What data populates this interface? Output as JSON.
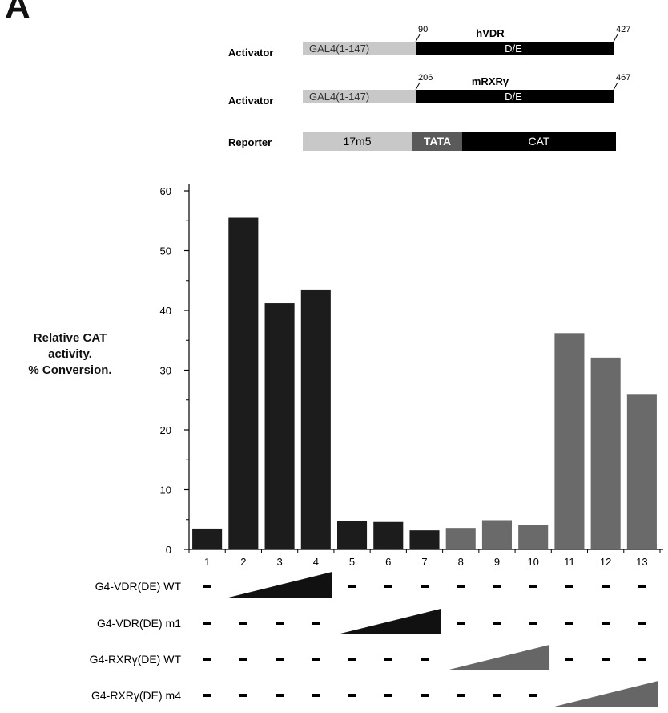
{
  "panel_label": "A",
  "constructs": [
    {
      "role": "Activator",
      "left": "GAL4(1-147)",
      "domain": "D/E",
      "name": "hVDR",
      "start": "90",
      "end": "427"
    },
    {
      "role": "Activator",
      "left": "GAL4(1-147)",
      "domain": "D/E",
      "name": "mRXRγ",
      "start": "206",
      "end": "467"
    },
    {
      "role": "Reporter",
      "segments": [
        "17m5",
        "TATA",
        "CAT"
      ]
    }
  ],
  "colors": {
    "dark_bar": "#1c1c1c",
    "gray_bar": "#6a6a6a",
    "gal4_box": "#c8c8c8",
    "black_box": "#000000",
    "tata_box": "#5a5a5a"
  },
  "chart_data": {
    "type": "bar",
    "ylabel": [
      "Relative CAT",
      "activity.",
      "% Conversion."
    ],
    "ylim": [
      0,
      60
    ],
    "yticks": [
      0,
      10,
      20,
      30,
      40,
      50,
      60
    ],
    "categories": [
      "1",
      "2",
      "3",
      "4",
      "5",
      "6",
      "7",
      "8",
      "9",
      "10",
      "11",
      "12",
      "13"
    ],
    "values": [
      3.5,
      55.5,
      41.2,
      43.5,
      4.8,
      4.6,
      3.2,
      3.6,
      4.9,
      4.1,
      36.2,
      32.1,
      26.0
    ],
    "bar_colors": [
      "#1c1c1c",
      "#1c1c1c",
      "#1c1c1c",
      "#1c1c1c",
      "#1c1c1c",
      "#1c1c1c",
      "#1c1c1c",
      "#6a6a6a",
      "#6a6a6a",
      "#6a6a6a",
      "#6a6a6a",
      "#6a6a6a",
      "#6a6a6a"
    ]
  },
  "conditions": [
    {
      "label": "G4-VDR(DE) WT",
      "ramp": [
        2,
        4
      ],
      "color": "#111111"
    },
    {
      "label": "G4-VDR(DE) m1",
      "ramp": [
        5,
        7
      ],
      "color": "#111111"
    },
    {
      "label": "G4-RXRγ(DE) WT",
      "ramp": [
        8,
        10
      ],
      "color": "#666666"
    },
    {
      "label": "G4-RXRγ(DE) m4",
      "ramp": [
        11,
        13
      ],
      "color": "#666666"
    }
  ]
}
